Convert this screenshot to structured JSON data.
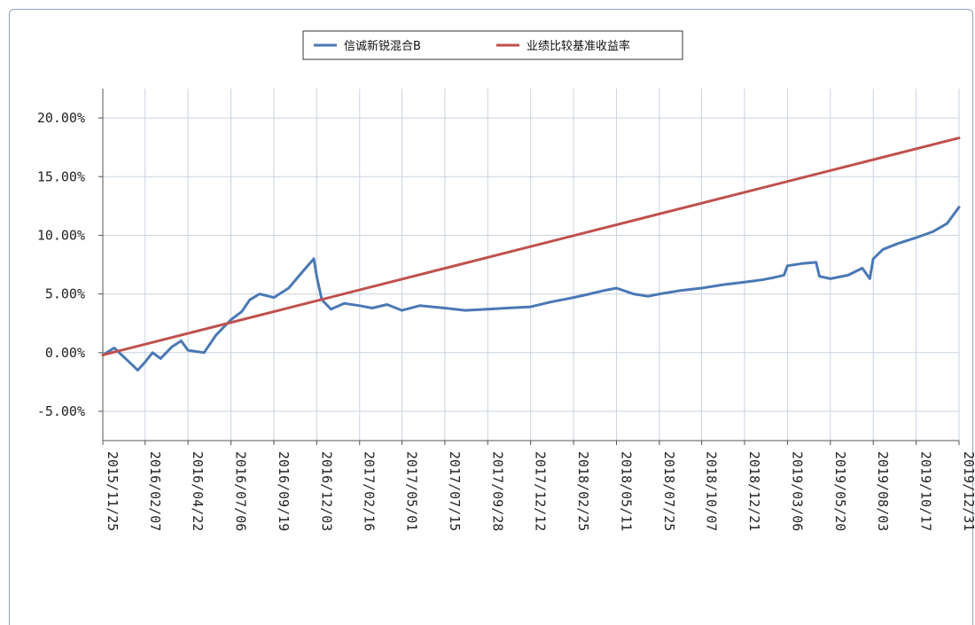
{
  "chart_data": {
    "type": "line",
    "title": "",
    "xlabel": "",
    "ylabel": "",
    "ylim": [
      -0.075,
      0.225
    ],
    "yticks": [
      -0.05,
      0.0,
      0.05,
      0.1,
      0.15,
      0.2
    ],
    "ytick_labels": [
      "-5.00%",
      "0.00%",
      "5.00%",
      "10.00%",
      "15.00%",
      "20.00%"
    ],
    "xticks": [
      "2015/11/25",
      "2016/02/07",
      "2016/04/22",
      "2016/07/06",
      "2016/09/19",
      "2016/12/03",
      "2017/02/16",
      "2017/05/01",
      "2017/07/15",
      "2017/09/28",
      "2017/12/12",
      "2018/02/25",
      "2018/05/11",
      "2018/07/25",
      "2018/10/07",
      "2018/12/21",
      "2019/03/06",
      "2019/05/20",
      "2019/08/03",
      "2019/10/17",
      "2019/12/31"
    ],
    "grid": true,
    "legend_position": "top-center",
    "series": [
      {
        "name": "信诚新锐混合B",
        "color": "#4a78b5",
        "x": [
          "2015/11/25",
          "2015/12/15",
          "2016/01/10",
          "2016/01/25",
          "2016/02/07",
          "2016/02/20",
          "2016/03/05",
          "2016/03/25",
          "2016/04/10",
          "2016/04/22",
          "2016/05/20",
          "2016/06/10",
          "2016/07/06",
          "2016/07/25",
          "2016/08/08",
          "2016/08/25",
          "2016/09/19",
          "2016/10/15",
          "2016/11/10",
          "2016/11/28",
          "2016/12/03",
          "2016/12/12",
          "2016/12/28",
          "2017/01/20",
          "2017/02/16",
          "2017/03/10",
          "2017/04/05",
          "2017/05/01",
          "2017/06/01",
          "2017/07/15",
          "2017/08/20",
          "2017/09/28",
          "2017/11/01",
          "2017/12/12",
          "2018/01/15",
          "2018/02/25",
          "2018/03/25",
          "2018/04/20",
          "2018/05/11",
          "2018/06/10",
          "2018/07/05",
          "2018/07/25",
          "2018/09/01",
          "2018/10/07",
          "2018/11/15",
          "2018/12/21",
          "2019/01/20",
          "2019/02/10",
          "2019/02/28",
          "2019/03/06",
          "2019/04/01",
          "2019/04/25",
          "2019/05/01",
          "2019/05/20",
          "2019/06/20",
          "2019/07/15",
          "2019/07/28",
          "2019/08/03",
          "2019/08/20",
          "2019/09/15",
          "2019/10/17",
          "2019/11/15",
          "2019/12/10",
          "2019/12/31"
        ],
        "values": [
          -0.002,
          0.004,
          -0.008,
          -0.015,
          -0.008,
          0.0,
          -0.005,
          0.005,
          0.01,
          0.002,
          0.0,
          0.015,
          0.028,
          0.035,
          0.045,
          0.05,
          0.047,
          0.055,
          0.07,
          0.08,
          0.065,
          0.045,
          0.037,
          0.042,
          0.04,
          0.038,
          0.041,
          0.036,
          0.04,
          0.038,
          0.036,
          0.037,
          0.038,
          0.039,
          0.043,
          0.047,
          0.05,
          0.053,
          0.055,
          0.05,
          0.048,
          0.05,
          0.053,
          0.055,
          0.058,
          0.06,
          0.062,
          0.064,
          0.066,
          0.074,
          0.076,
          0.077,
          0.065,
          0.063,
          0.066,
          0.072,
          0.063,
          0.08,
          0.088,
          0.093,
          0.098,
          0.103,
          0.11,
          0.124
        ]
      },
      {
        "name": "业绩比较基准收益率",
        "color": "#c0504d",
        "x": [
          "2015/11/25",
          "2019/12/31"
        ],
        "values": [
          -0.002,
          0.183
        ]
      }
    ]
  }
}
